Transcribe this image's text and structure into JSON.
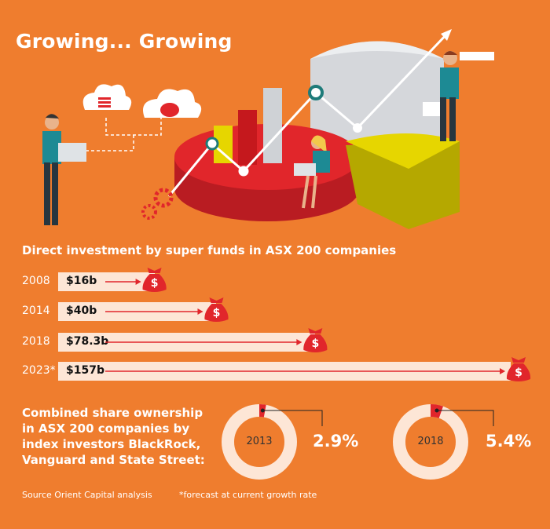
{
  "title": "Growing... Growing",
  "colors": {
    "background": "#ef7d2e",
    "bar": "#fde6d6",
    "bag": "#e1262b",
    "donut_track": "#fde6d6",
    "donut_fill": "#e1262b"
  },
  "chart_data": [
    {
      "type": "bar",
      "title": "Direct investment by super funds in ASX 200 companies",
      "categories": [
        "2008",
        "2014",
        "2018",
        "2023*"
      ],
      "series": [
        {
          "values": [
            16,
            40,
            78.3,
            157
          ]
        }
      ],
      "value_labels": [
        "$16b",
        "$40b",
        "$78.3b",
        "$157b"
      ],
      "unit": "$ billions",
      "orientation": "horizontal"
    },
    {
      "type": "pie",
      "title": "Combined share ownership in ASX 200 companies by index investors BlackRock, Vanguard and State Street:",
      "donuts": [
        {
          "year": "2013",
          "value": 2.9,
          "label": "2.9%"
        },
        {
          "year": "2018",
          "value": 5.4,
          "label": "5.4%"
        }
      ]
    }
  ],
  "footer": {
    "source": "Source Orient Capital analysis",
    "note": "*forecast at current growth rate"
  },
  "icons": [
    "money-bag-icon",
    "cloud-coins-icon",
    "cloud-piggy-bank-icon",
    "gear-icon"
  ]
}
